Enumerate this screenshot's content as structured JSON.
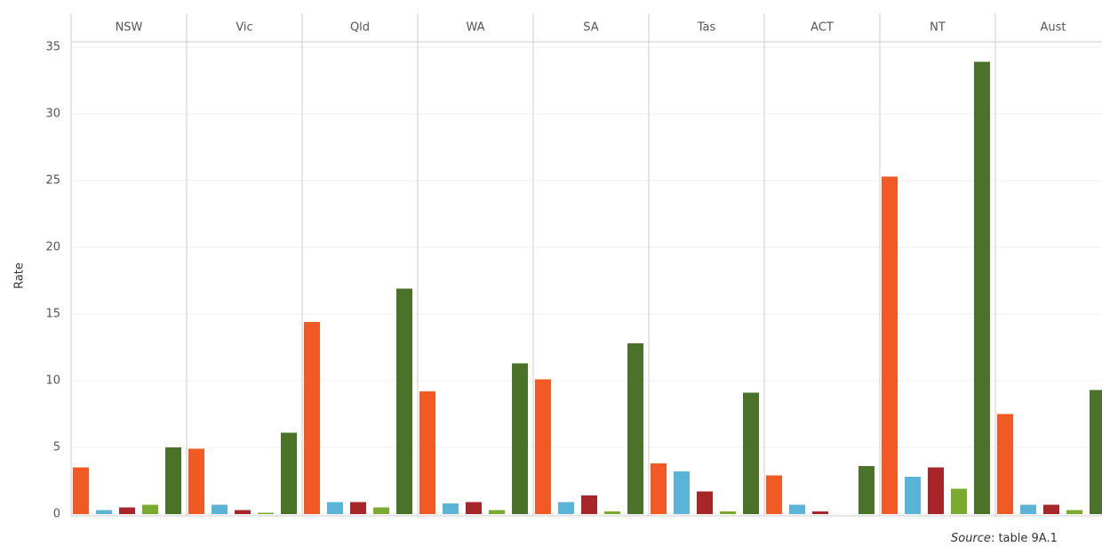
{
  "chart_data": {
    "type": "bar",
    "ylabel": "Rate",
    "categories": [
      "NSW",
      "Vic",
      "Qld",
      "WA",
      "SA",
      "Tas",
      "ACT",
      "NT",
      "Aust"
    ],
    "series": [
      {
        "color": "#f15a24",
        "values": [
          3.5,
          4.9,
          14.4,
          9.2,
          10.1,
          3.8,
          2.9,
          25.3,
          7.5
        ]
      },
      {
        "color": "#5ab4d8",
        "values": [
          0.3,
          0.7,
          0.9,
          0.8,
          0.9,
          3.2,
          0.7,
          2.8,
          0.7
        ]
      },
      {
        "color": "#a6262a",
        "values": [
          0.5,
          0.3,
          0.9,
          0.9,
          1.4,
          1.7,
          0.2,
          3.5,
          0.7
        ]
      },
      {
        "color": "#7aab2e",
        "values": [
          0.7,
          0.1,
          0.5,
          0.3,
          0.2,
          0.2,
          null,
          1.9,
          0.3
        ]
      },
      {
        "color": "#4a7228",
        "values": [
          5.0,
          6.1,
          16.9,
          11.3,
          12.8,
          9.1,
          3.6,
          33.9,
          9.3
        ]
      }
    ],
    "ylim": [
      0,
      35
    ],
    "yticks": [
      0,
      5,
      10,
      15,
      20,
      25,
      30,
      35
    ],
    "grid": true,
    "source_label": "Source",
    "source_text": ": table 9A.1"
  }
}
